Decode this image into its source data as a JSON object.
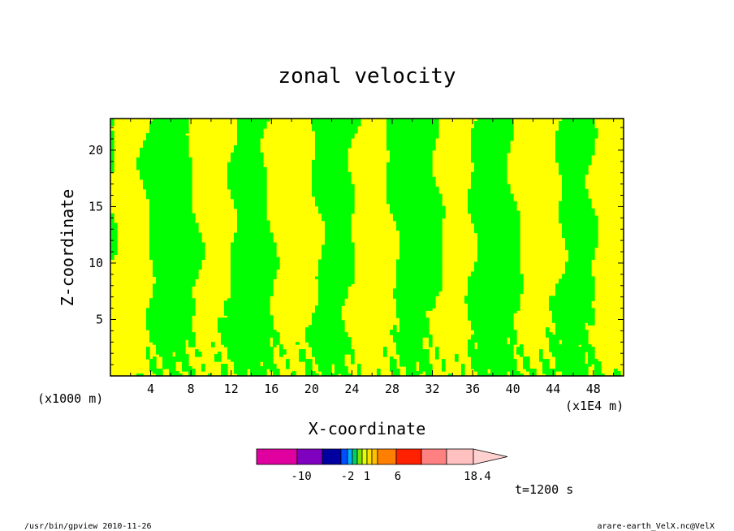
{
  "chart_data": {
    "type": "heatmap",
    "title": "zonal velocity",
    "xlabel": "X-coordinate",
    "ylabel": "Z-coordinate",
    "x_unit_left": "(x1000 m)",
    "x_unit_right": "(x1E4 m)",
    "xlim": [
      0,
      51
    ],
    "ylim": [
      0,
      22.8
    ],
    "xticks": [
      4,
      8,
      12,
      16,
      20,
      24,
      28,
      32,
      36,
      40,
      44,
      48
    ],
    "yticks": [
      5,
      10,
      15,
      20
    ],
    "fill_colors": {
      "positive": "#ffff00",
      "negative": "#00ff00"
    },
    "colorbar": {
      "segments": [
        "#e000a0",
        "#8000c0",
        "#0000a0",
        "#0050ff",
        "#00b0ff",
        "#00d060",
        "#80e000",
        "#e0ff00",
        "#ffe000",
        "#ffc000",
        "#ff8000",
        "#ff2000",
        "#ff8080",
        "#ffc0c0"
      ],
      "tick_labels": [
        "-10",
        "-2",
        "1",
        "6",
        "18.4"
      ]
    },
    "time_label": "t=1200 s"
  },
  "footer": {
    "left": "/usr/bin/gpview   2010-11-26",
    "right": "arare-earth_VelX.nc@VelX"
  }
}
